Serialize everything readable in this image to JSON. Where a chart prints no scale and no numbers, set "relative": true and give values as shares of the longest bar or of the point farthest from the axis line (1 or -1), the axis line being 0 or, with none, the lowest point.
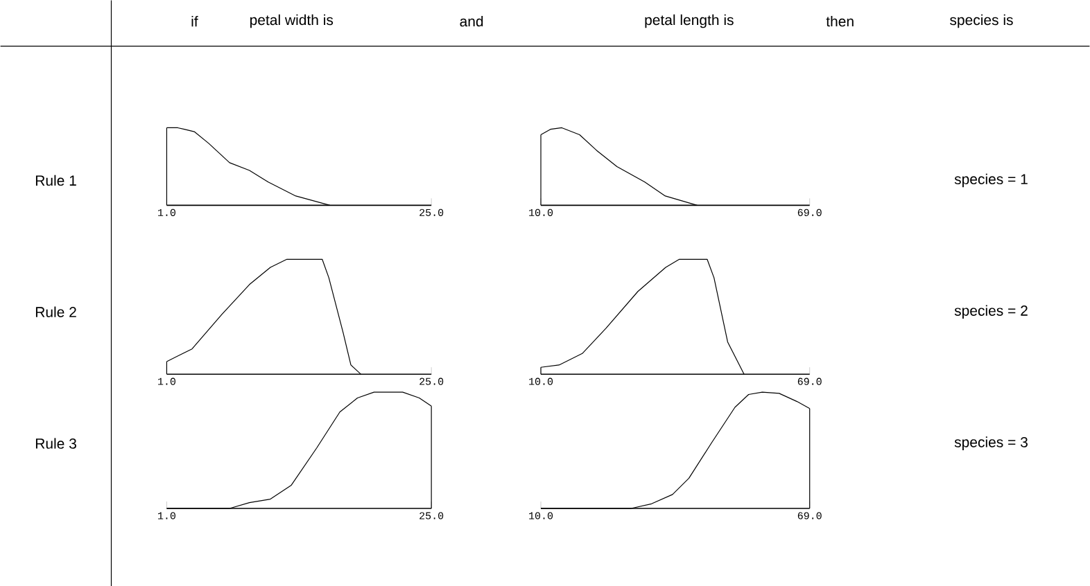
{
  "chart_data": [
    {
      "type": "line",
      "relative": true,
      "color": "#000000",
      "xlim": [
        1,
        25
      ],
      "xticks": [
        {
          "value": 1,
          "label": "1.0"
        },
        {
          "value": 25,
          "label": "25.0"
        }
      ],
      "x": [
        1.0,
        2.0,
        2.6,
        3.5,
        4.8,
        6.7,
        8.5,
        10.2,
        12.7,
        15.8
      ],
      "values": [
        1,
        1,
        0.98,
        0.95,
        0.8,
        0.55,
        0.45,
        0.3,
        0.12,
        0
      ]
    },
    {
      "type": "line",
      "relative": true,
      "color": "#000000",
      "xlim": [
        10,
        69
      ],
      "xticks": [
        {
          "value": 10,
          "label": "10.0"
        },
        {
          "value": 69,
          "label": "69.0"
        }
      ],
      "x": [
        10.0,
        12.1,
        14.6,
        18.5,
        22.2,
        26.7,
        32.8,
        37.3,
        44.3
      ],
      "values": [
        0.91,
        0.98,
        1,
        0.91,
        0.71,
        0.5,
        0.3,
        0.12,
        0
      ]
    },
    {
      "type": "line",
      "relative": true,
      "color": "#000000",
      "xlim": [
        1,
        25
      ],
      "xticks": [
        {
          "value": 1,
          "label": "1.0"
        },
        {
          "value": 25,
          "label": "25.0"
        }
      ],
      "x": [
        1.0,
        3.3,
        6.0,
        8.5,
        10.4,
        11.9,
        15.1,
        15.7,
        17.0,
        17.7,
        18.6
      ],
      "values": [
        0.11,
        0.22,
        0.52,
        0.78,
        0.93,
        1,
        1,
        0.84,
        0.36,
        0.08,
        0
      ]
    },
    {
      "type": "line",
      "relative": true,
      "color": "#000000",
      "xlim": [
        10,
        69
      ],
      "xticks": [
        {
          "value": 10,
          "label": "10.0"
        },
        {
          "value": 69,
          "label": "69.0"
        }
      ],
      "x": [
        10.0,
        14.0,
        19.1,
        24.3,
        31.3,
        37.4,
        40.4,
        46.5,
        48.0,
        51.0,
        54.6
      ],
      "values": [
        0.06,
        0.08,
        0.18,
        0.4,
        0.72,
        0.93,
        1,
        1,
        0.84,
        0.28,
        0
      ]
    },
    {
      "type": "line",
      "relative": true,
      "color": "#000000",
      "xlim": [
        1,
        25
      ],
      "xticks": [
        {
          "value": 1,
          "label": "1.0"
        },
        {
          "value": 25,
          "label": "25.0"
        }
      ],
      "x": [
        1.0,
        6.7,
        8.5,
        10.4,
        12.3,
        14.6,
        16.7,
        18.3,
        19.8,
        22.4,
        23.9,
        25.0
      ],
      "values": [
        0,
        0,
        0.05,
        0.08,
        0.2,
        0.52,
        0.83,
        0.95,
        1,
        1,
        0.95,
        0.88
      ]
    },
    {
      "type": "line",
      "relative": true,
      "color": "#000000",
      "xlim": [
        10,
        69
      ],
      "xticks": [
        {
          "value": 10,
          "label": "10.0"
        },
        {
          "value": 69,
          "label": "69.0"
        }
      ],
      "x": [
        10.0,
        29.8,
        34.3,
        38.9,
        42.5,
        47.4,
        52.6,
        55.6,
        58.6,
        62.3,
        66.2,
        69.0
      ],
      "values": [
        0,
        0,
        0.04,
        0.12,
        0.26,
        0.56,
        0.87,
        0.98,
        1,
        0.99,
        0.92,
        0.86
      ]
    },
    {
      "type": "other",
      "annotations": [
        "if",
        "petal width is",
        "and",
        "petal length is",
        "then",
        "species is",
        "Rule 1",
        "Rule 2",
        "Rule 3",
        "species = 1",
        "species = 2",
        "species = 3"
      ]
    }
  ]
}
